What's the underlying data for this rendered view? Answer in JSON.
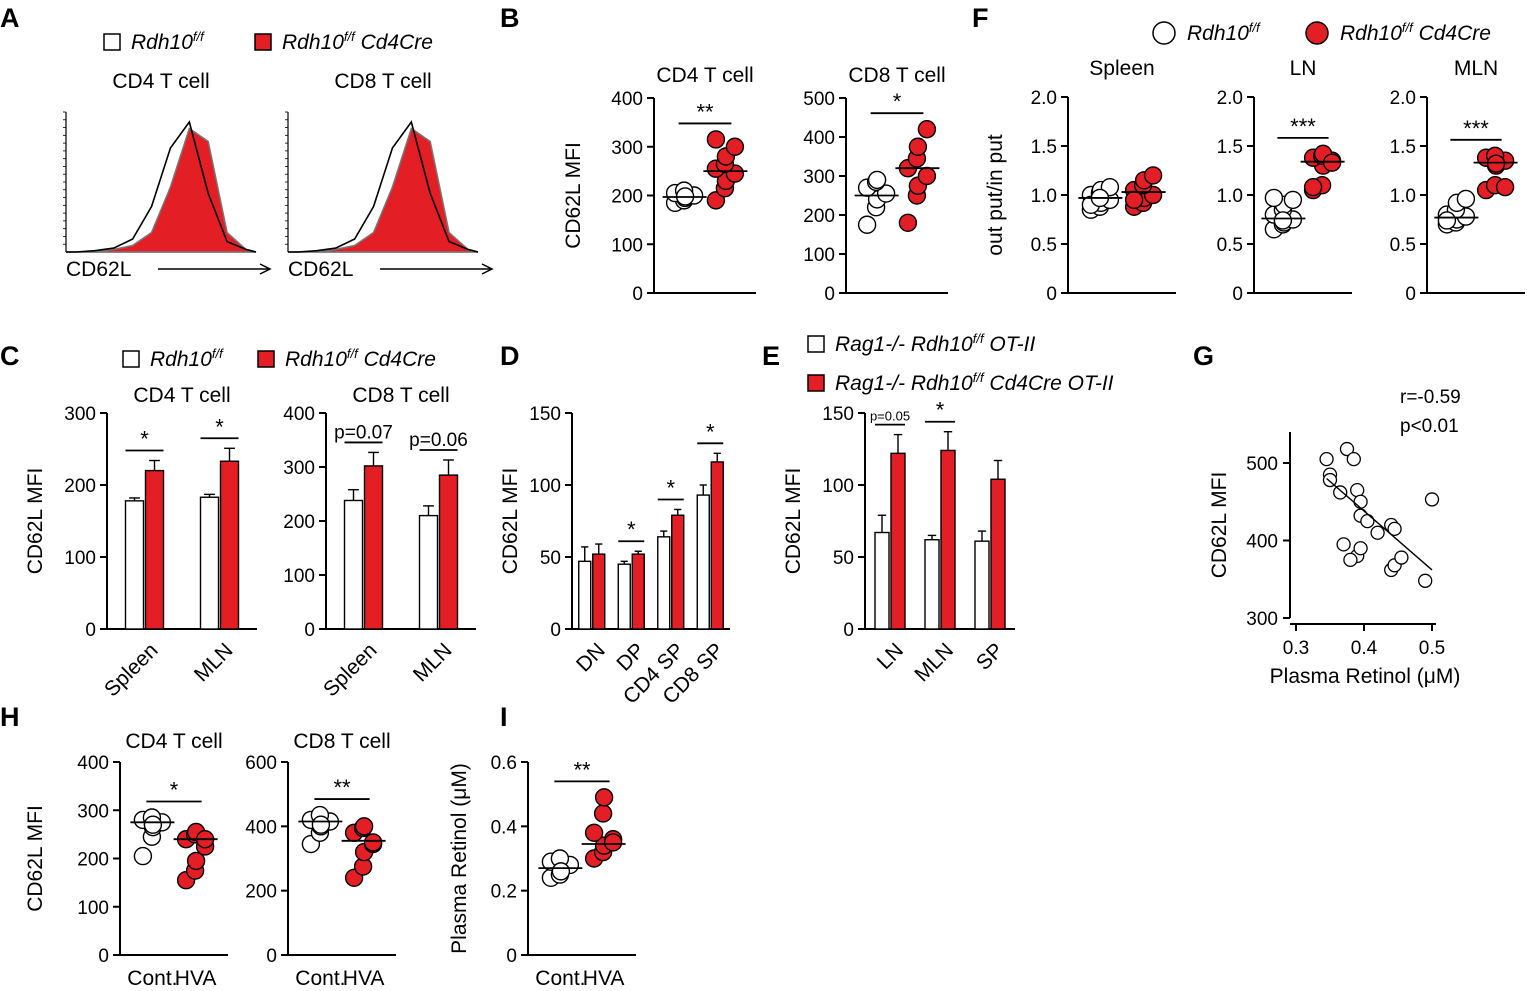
{
  "colors": {
    "wt": "#ffffff",
    "ko": "#e31e24",
    "stroke": "#000000"
  },
  "legend_af": {
    "wt": "Rdh10",
    "ko": "Rdh10",
    "sup": "f/f",
    "ko_suffix": " Cd4Cre"
  },
  "legend_c": {
    "wt": "Rdh10",
    "ko": "Rdh10",
    "sup": "f/f",
    "ko_suffix": " Cd4Cre"
  },
  "legend_e": {
    "wt_pre": "Rag1-/- Rdh10",
    "wt_post": " OT-II",
    "ko_pre": "Rag1-/- Rdh10",
    "ko_post": " Cd4Cre OT-II",
    "sup": "f/f"
  },
  "chart_data": [
    {
      "panel": "A",
      "type": "histogram",
      "title": "CD4 T cell",
      "xlabel": "CD62L",
      "series": [
        {
          "name": "Rdh10 f/f",
          "values": [
            0.0,
            0.01,
            0.03,
            0.1,
            0.35,
            0.8,
            1.0,
            0.45,
            0.08,
            0.02
          ]
        },
        {
          "name": "Rdh10 f/f Cd4Cre",
          "values": [
            0.0,
            0.0,
            0.02,
            0.05,
            0.15,
            0.5,
            0.95,
            0.85,
            0.15,
            0.02
          ]
        }
      ]
    },
    {
      "panel": "A",
      "type": "histogram",
      "title": "CD8 T cell",
      "xlabel": "CD62L",
      "series": [
        {
          "name": "Rdh10 f/f",
          "values": [
            0.0,
            0.01,
            0.03,
            0.1,
            0.35,
            0.8,
            1.0,
            0.45,
            0.08,
            0.02
          ]
        },
        {
          "name": "Rdh10 f/f Cd4Cre",
          "values": [
            0.0,
            0.0,
            0.02,
            0.05,
            0.15,
            0.5,
            0.95,
            0.85,
            0.15,
            0.02
          ]
        }
      ]
    },
    {
      "panel": "B",
      "type": "scatter",
      "title": "CD4 T cell",
      "ylabel": "CD62L MFI",
      "ylim": [
        0,
        400
      ],
      "yticks": [
        0,
        100,
        200,
        300,
        400
      ],
      "groups": [
        {
          "name": "Rdh10 f/f",
          "values": [
            185,
            190,
            195,
            200,
            205,
            210,
            198
          ],
          "mean": 197
        },
        {
          "name": "Rdh10 f/f Cd4Cre",
          "values": [
            190,
            215,
            230,
            245,
            255,
            265,
            280,
            300,
            315
          ],
          "mean": 250
        }
      ],
      "sig": "**"
    },
    {
      "panel": "B",
      "type": "scatter",
      "title": "CD8 T cell",
      "ylabel": "",
      "ylim": [
        0,
        500
      ],
      "yticks": [
        0,
        100,
        200,
        300,
        400,
        500
      ],
      "groups": [
        {
          "name": "Rdh10 f/f",
          "values": [
            175,
            220,
            240,
            255,
            270,
            285,
            290
          ],
          "mean": 250
        },
        {
          "name": "Rdh10 f/f Cd4Cre",
          "values": [
            180,
            250,
            275,
            300,
            320,
            345,
            375,
            420
          ],
          "mean": 320
        }
      ],
      "sig": "*"
    },
    {
      "panel": "C",
      "type": "bar",
      "title": "CD4 T cell",
      "ylabel": "CD62L MFI",
      "categories": [
        "Spleen",
        "MLN"
      ],
      "ylim": [
        0,
        300
      ],
      "yticks": [
        0,
        100,
        200,
        300
      ],
      "series": [
        {
          "name": "Rdh10 f/f",
          "values": [
            178,
            183
          ],
          "err": [
            4,
            4
          ]
        },
        {
          "name": "Rdh10 f/f Cd4Cre",
          "values": [
            220,
            233
          ],
          "err": [
            14,
            18
          ]
        }
      ],
      "sig": [
        "*",
        "*"
      ]
    },
    {
      "panel": "C",
      "type": "bar",
      "title": "CD8 T cell",
      "ylabel": "",
      "categories": [
        "Spleen",
        "MLN"
      ],
      "ylim": [
        0,
        400
      ],
      "yticks": [
        0,
        100,
        200,
        300,
        400
      ],
      "series": [
        {
          "name": "Rdh10 f/f",
          "values": [
            238,
            210
          ],
          "err": [
            20,
            18
          ]
        },
        {
          "name": "Rdh10 f/f Cd4Cre",
          "values": [
            302,
            285
          ],
          "err": [
            25,
            28
          ]
        }
      ],
      "sig": [
        "p=0.07",
        "p=0.06"
      ]
    },
    {
      "panel": "D",
      "type": "bar",
      "title": "",
      "ylabel": "CD62L MFI",
      "categories": [
        "DN",
        "DP",
        "CD4 SP",
        "CD8 SP"
      ],
      "ylim": [
        0,
        150
      ],
      "yticks": [
        0,
        50,
        100,
        150
      ],
      "series": [
        {
          "name": "Rdh10 f/f",
          "values": [
            47,
            45,
            64,
            93
          ],
          "err": [
            10,
            2,
            4,
            7
          ]
        },
        {
          "name": "Rdh10 f/f Cd4Cre",
          "values": [
            52,
            52,
            79,
            116
          ],
          "err": [
            7,
            2,
            4,
            6
          ]
        }
      ],
      "sig": [
        "",
        "*",
        "*",
        "*"
      ]
    },
    {
      "panel": "E",
      "type": "bar",
      "title": "",
      "ylabel": "CD62L MFI",
      "categories": [
        "LN",
        "MLN",
        "SP"
      ],
      "ylim": [
        0,
        150
      ],
      "yticks": [
        0,
        50,
        100,
        150
      ],
      "series": [
        {
          "name": "Rag1-/- Rdh10 f/f OT-II",
          "values": [
            67,
            62,
            61
          ],
          "err": [
            12,
            3,
            7
          ]
        },
        {
          "name": "Rag1-/- Rdh10 f/f Cd4Cre OT-II",
          "values": [
            122,
            124,
            104
          ],
          "err": [
            13,
            13,
            13
          ]
        }
      ],
      "sig": [
        "p=0.05",
        "*",
        ""
      ]
    },
    {
      "panel": "F",
      "type": "scatter",
      "title": "Spleen",
      "ylabel": "out put/in put",
      "ylim": [
        0,
        2.0
      ],
      "yticks": [
        0,
        0.5,
        1.0,
        1.5,
        2.0
      ],
      "groups": [
        {
          "name": "Rdh10 f/f",
          "values": [
            0.85,
            0.88,
            0.92,
            0.95,
            1.0,
            1.02,
            1.05,
            1.08,
            0.9,
            0.97
          ],
          "mean": 0.97
        },
        {
          "name": "Rdh10 f/f Cd4Cre",
          "values": [
            0.88,
            0.92,
            0.97,
            1.0,
            1.05,
            1.1,
            1.15,
            1.2,
            0.95
          ],
          "mean": 1.03
        }
      ],
      "sig": ""
    },
    {
      "panel": "F",
      "type": "scatter",
      "title": "LN",
      "ylabel": "",
      "ylim": [
        0,
        2.0
      ],
      "yticks": [
        0,
        0.5,
        1.0,
        1.5,
        2.0
      ],
      "groups": [
        {
          "name": "Rdh10 f/f",
          "values": [
            0.65,
            0.7,
            0.72,
            0.75,
            0.8,
            0.85,
            0.9,
            0.95,
            0.97,
            0.74
          ],
          "mean": 0.76
        },
        {
          "name": "Rdh10 f/f Cd4Cre",
          "values": [
            1.05,
            1.1,
            1.3,
            1.35,
            1.38,
            1.4,
            1.42,
            1.33,
            1.08
          ],
          "mean": 1.34
        }
      ],
      "sig": "***"
    },
    {
      "panel": "F",
      "type": "scatter",
      "title": "MLN",
      "ylabel": "",
      "ylim": [
        0,
        2.0
      ],
      "yticks": [
        0,
        0.5,
        1.0,
        1.5,
        2.0
      ],
      "groups": [
        {
          "name": "Rdh10 f/f",
          "values": [
            0.7,
            0.72,
            0.75,
            0.78,
            0.8,
            0.85,
            0.92,
            0.96,
            0.74
          ],
          "mean": 0.77
        },
        {
          "name": "Rdh10 f/f Cd4Cre",
          "values": [
            1.05,
            1.1,
            1.3,
            1.35,
            1.38,
            1.4,
            1.32,
            1.08
          ],
          "mean": 1.33
        }
      ],
      "sig": "***"
    },
    {
      "panel": "G",
      "type": "scatter",
      "xlabel": "Plasma Retinol (μM)",
      "ylabel": "CD62L MFI",
      "xlim": [
        0.3,
        0.5
      ],
      "xticks": [
        0.3,
        0.4,
        0.5
      ],
      "ylim": [
        300,
        540
      ],
      "yticks": [
        300,
        400,
        500
      ],
      "points": [
        [
          0.345,
          505
        ],
        [
          0.35,
          485
        ],
        [
          0.35,
          478
        ],
        [
          0.375,
          518
        ],
        [
          0.385,
          505
        ],
        [
          0.365,
          462
        ],
        [
          0.39,
          465
        ],
        [
          0.395,
          450
        ],
        [
          0.395,
          432
        ],
        [
          0.405,
          425
        ],
        [
          0.42,
          410
        ],
        [
          0.44,
          420
        ],
        [
          0.445,
          415
        ],
        [
          0.39,
          380
        ],
        [
          0.395,
          390
        ],
        [
          0.38,
          375
        ],
        [
          0.37,
          395
        ],
        [
          0.44,
          362
        ],
        [
          0.445,
          368
        ],
        [
          0.455,
          378
        ],
        [
          0.49,
          348
        ],
        [
          0.5,
          453
        ]
      ],
      "fit": [
        [
          0.345,
          480
        ],
        [
          0.5,
          362
        ]
      ],
      "annotations": [
        "r=-0.59",
        "p<0.01"
      ]
    },
    {
      "panel": "H",
      "type": "scatter",
      "title": "CD4 T cell",
      "ylabel": "CD62L MFI",
      "categories": [
        "Cont.",
        "HVA"
      ],
      "ylim": [
        0,
        400
      ],
      "yticks": [
        0,
        100,
        200,
        300,
        400
      ],
      "groups": [
        {
          "name": "Cont.",
          "values": [
            205,
            245,
            265,
            275,
            280,
            285,
            270
          ],
          "mean": 275
        },
        {
          "name": "HVA",
          "values": [
            155,
            175,
            195,
            225,
            240,
            250,
            255,
            240
          ],
          "mean": 240
        }
      ],
      "sig": "*"
    },
    {
      "panel": "H",
      "type": "scatter",
      "title": "CD8 T cell",
      "ylabel": "",
      "categories": [
        "Cont.",
        "HVA"
      ],
      "ylim": [
        0,
        600
      ],
      "yticks": [
        0,
        200,
        400,
        600
      ],
      "groups": [
        {
          "name": "Cont.",
          "values": [
            345,
            380,
            400,
            415,
            420,
            435,
            405
          ],
          "mean": 415
        },
        {
          "name": "HVA",
          "values": [
            240,
            275,
            320,
            345,
            380,
            395,
            400,
            350
          ],
          "mean": 355
        },
        {
          "name": "",
          "values": [],
          "mean": 0
        }
      ],
      "sig": "**"
    },
    {
      "panel": "I",
      "type": "scatter",
      "title": "",
      "ylabel": "Plasma Retinol (μM)",
      "categories": [
        "Cont.",
        "HVA"
      ],
      "ylim": [
        0,
        0.6
      ],
      "yticks": [
        0,
        0.2,
        0.4,
        0.6
      ],
      "groups": [
        {
          "name": "Cont.",
          "values": [
            0.24,
            0.25,
            0.27,
            0.28,
            0.29,
            0.3,
            0.26
          ],
          "mean": 0.27
        },
        {
          "name": "HVA",
          "values": [
            0.3,
            0.32,
            0.34,
            0.36,
            0.38,
            0.44,
            0.49,
            0.35
          ],
          "mean": 0.345
        }
      ],
      "sig": "**"
    }
  ],
  "panel_labels": [
    "A",
    "B",
    "C",
    "D",
    "E",
    "F",
    "G",
    "H",
    "I"
  ]
}
